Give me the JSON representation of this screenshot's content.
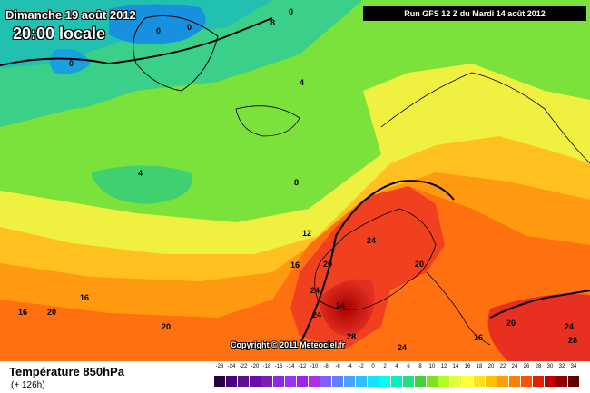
{
  "header": {
    "date": "Dimanche 19 août 2012",
    "time": "20:00 locale",
    "run": "Run GFS 12 Z du Mardi 14 août 2012",
    "copyright": "Copyright © 2011 Meteociel.fr"
  },
  "legend": {
    "variable": "Température 850hPa",
    "lead": "(+ 126h)",
    "ticks": [
      "-26",
      "-24",
      "-22",
      "-20",
      "-18",
      "-16",
      "-14",
      "-12",
      "-10",
      "-8",
      "-6",
      "-4",
      "-2",
      "0",
      "2",
      "4",
      "6",
      "8",
      "10",
      "12",
      "14",
      "16",
      "18",
      "20",
      "22",
      "24",
      "26",
      "28",
      "30",
      "32",
      "34"
    ],
    "colors": [
      "#2a0040",
      "#4b0082",
      "#5a1090",
      "#6a0dad",
      "#7b1fb0",
      "#8a2be2",
      "#9b30ff",
      "#a020f0",
      "#b030e0",
      "#8060ff",
      "#6080ff",
      "#4aa0ff",
      "#30c0ff",
      "#18e0ff",
      "#00ffee",
      "#00f0c0",
      "#20e080",
      "#40d040",
      "#80e020",
      "#b0ff20",
      "#e0ff40",
      "#ffff40",
      "#ffe020",
      "#ffc000",
      "#ffa000",
      "#ff8000",
      "#ff5000",
      "#e02000",
      "#c00000",
      "#900000",
      "#600000"
    ]
  },
  "isotherms": {
    "labels": [
      "0",
      "0",
      "0",
      "0",
      "4",
      "8",
      "4",
      "4",
      "8",
      "12",
      "16",
      "20",
      "24",
      "20",
      "16",
      "16",
      "20",
      "24",
      "24",
      "28",
      "24",
      "20",
      "16",
      "20",
      "24",
      "28",
      "24"
    ]
  },
  "colors": {
    "cold": "#1fb8d8",
    "mild": "#7ee13a",
    "warm": "#ffff20",
    "hot": "#ff5a20",
    "extreme": "#c81818"
  }
}
